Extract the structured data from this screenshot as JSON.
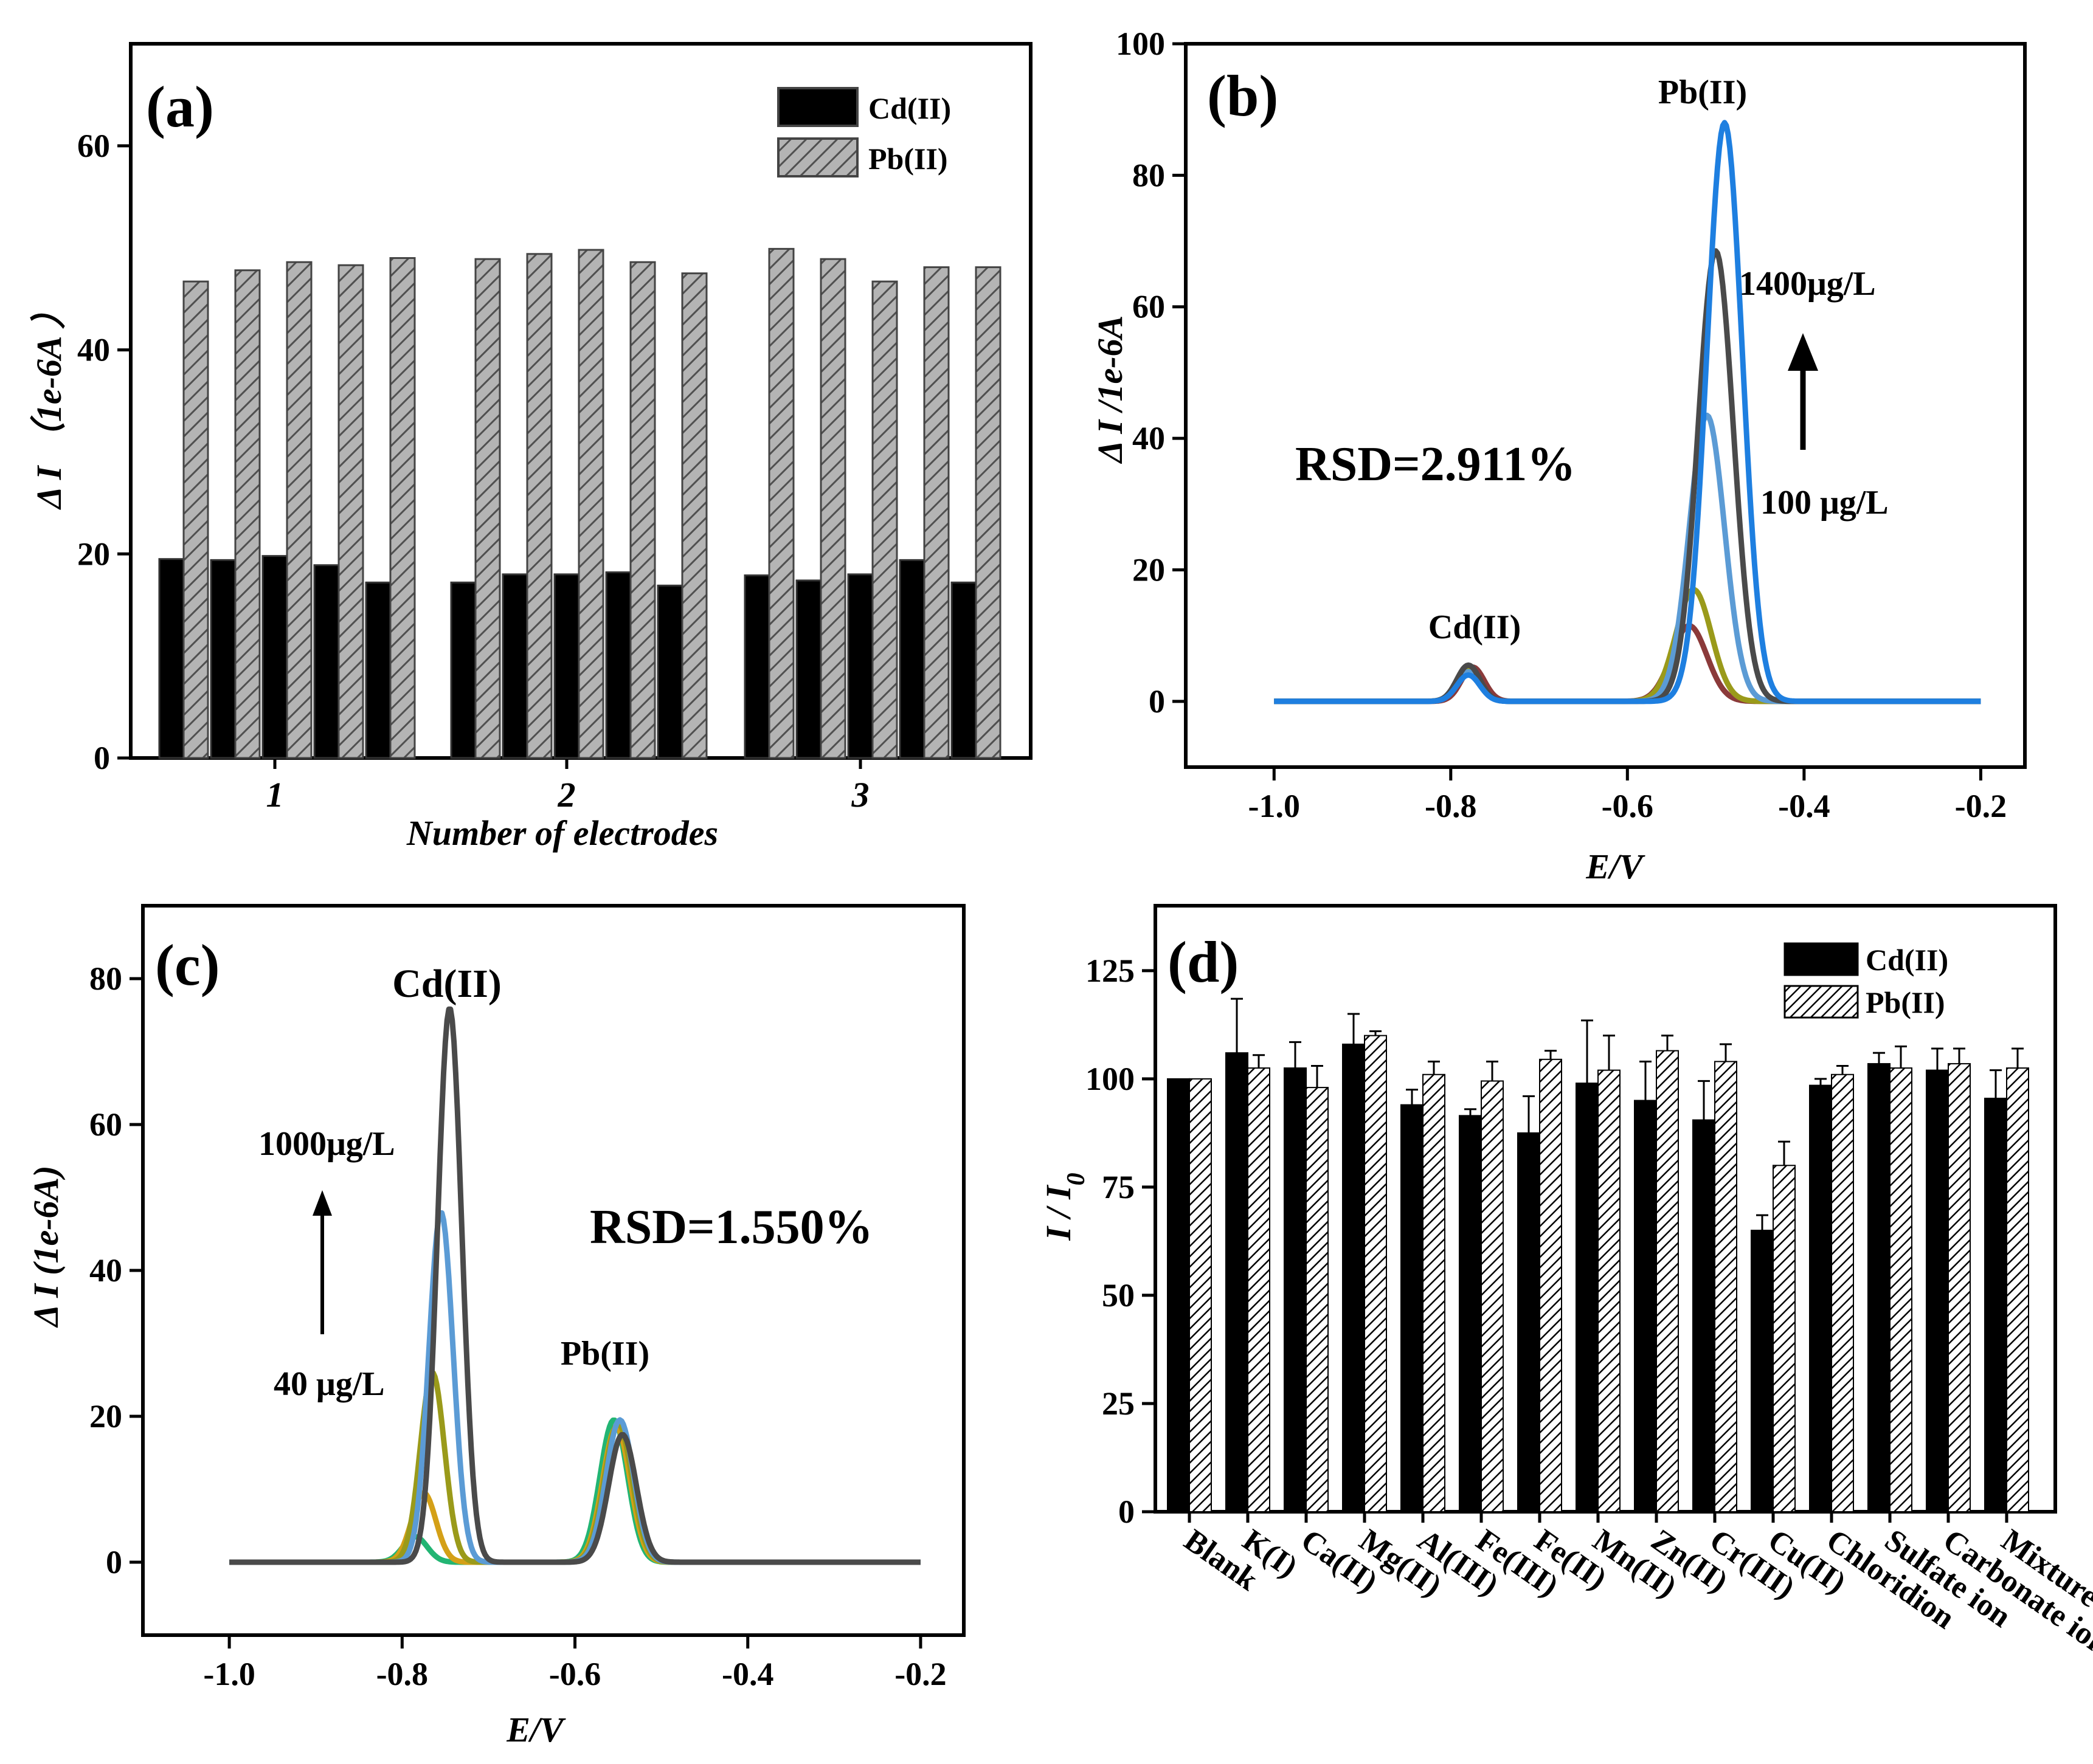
{
  "chart_data": [
    {
      "panel": "(a)",
      "type": "bar",
      "categories": [
        "1",
        "2",
        "3"
      ],
      "xlabel": "Number of electrodes",
      "ylabel": "Δ I （1e-6A ）",
      "ylim": [
        0,
        70
      ],
      "yticks": [
        "0",
        "20",
        "40",
        "60"
      ],
      "legend_position": "top-right",
      "series": [
        {
          "name": "Cd(II)",
          "color": "#000000",
          "pattern": "solid",
          "values": [
            [
              19.5,
              19.4,
              19.8,
              18.9,
              17.2
            ],
            [
              17.2,
              18.0,
              18.0,
              18.2,
              16.9
            ],
            [
              17.9,
              17.4,
              18.0,
              19.4,
              17.2
            ]
          ]
        },
        {
          "name": "Pb(II)",
          "color": "#a6a6a6",
          "pattern": "hatched",
          "values": [
            [
              46.7,
              47.8,
              48.6,
              48.3,
              49.0
            ],
            [
              48.9,
              49.4,
              49.8,
              48.6,
              47.5
            ],
            [
              49.9,
              48.9,
              46.7,
              48.1,
              48.1
            ]
          ]
        }
      ]
    },
    {
      "panel": "(b)",
      "type": "line",
      "xlabel": "E/V",
      "ylabel": "Δ I /1e-6A",
      "xlim": [
        -1.1,
        -0.15
      ],
      "ylim": [
        -10,
        100
      ],
      "xticks": [
        "-1.0",
        "-0.8",
        "-0.6",
        "-0.4",
        "-0.2"
      ],
      "yticks": [
        "0",
        "20",
        "40",
        "60",
        "80",
        "100"
      ],
      "annotations": {
        "peak1": "Cd(II)",
        "peak2": "Pb(II)",
        "rsd": "RSD=2.911%",
        "conc_high": "1400μg/L",
        "conc_low": "100 μg/L"
      },
      "series": [
        {
          "color": "#8b3a3a",
          "cd_peak": 5.2,
          "cd_pos": -0.775,
          "pb_peak": 11.5,
          "pb_pos": -0.53
        },
        {
          "color": "#9a9a1a",
          "cd_peak": 5.0,
          "cd_pos": -0.78,
          "pb_peak": 17.0,
          "pb_pos": -0.525
        },
        {
          "color": "#5b9bd5",
          "cd_peak": 4.5,
          "cd_pos": -0.78,
          "pb_peak": 43.5,
          "pb_pos": -0.51
        },
        {
          "color": "#4a4a4a",
          "cd_peak": 5.5,
          "cd_pos": -0.78,
          "pb_peak": 68.5,
          "pb_pos": -0.5
        },
        {
          "color": "#1e7fe0",
          "cd_peak": 4.0,
          "cd_pos": -0.78,
          "pb_peak": 88.0,
          "pb_pos": -0.49
        }
      ]
    },
    {
      "panel": "(c)",
      "type": "line",
      "xlabel": "E/V",
      "ylabel": "Δ I (1e-6A)",
      "xlim": [
        -1.1,
        -0.15
      ],
      "ylim": [
        -10,
        90
      ],
      "xticks": [
        "-1.0",
        "-0.8",
        "-0.6",
        "-0.4",
        "-0.2"
      ],
      "yticks": [
        "0",
        "20",
        "40",
        "60",
        "80"
      ],
      "annotations": {
        "peak1": "Cd(II)",
        "peak2": "Pb(II)",
        "rsd": "RSD=1.550%",
        "conc_high": "1000μg/L",
        "conc_low": "40 μg/L"
      },
      "series": [
        {
          "color": "#22b573",
          "cd_peak": 3.5,
          "cd_pos": -0.785,
          "pb_peak": 19.5,
          "pb_pos": -0.555
        },
        {
          "color": "#d4a017",
          "cd_peak": 9.5,
          "cd_pos": -0.775,
          "pb_peak": 18.5,
          "pb_pos": -0.552
        },
        {
          "color": "#9a9a1a",
          "cd_peak": 26.0,
          "cd_pos": -0.765,
          "pb_peak": 19.0,
          "pb_pos": -0.55
        },
        {
          "color": "#5b9bd5",
          "cd_peak": 48.0,
          "cd_pos": -0.755,
          "pb_peak": 19.5,
          "pb_pos": -0.548
        },
        {
          "color": "#4a4a4a",
          "cd_peak": 76.0,
          "cd_pos": -0.745,
          "pb_peak": 17.5,
          "pb_pos": -0.545
        }
      ]
    },
    {
      "panel": "(d)",
      "type": "bar",
      "xlabel": "",
      "ylabel": "I / I0",
      "ylim": [
        0,
        140
      ],
      "yticks": [
        "0",
        "25",
        "50",
        "75",
        "100",
        "125"
      ],
      "legend_position": "top-right",
      "categories": [
        "Blank",
        "K(I)",
        "Ca(II)",
        "Mg(II)",
        "Al(III)",
        "Fe(III)",
        "Fe(II)",
        "Mn(II)",
        "Zn(II)",
        "Cr(III)",
        "Cu(II)",
        "Chloridion",
        "Sulfate ion",
        "Carbonate ion",
        "Mixture"
      ],
      "series": [
        {
          "name": "Cd(II)",
          "color": "#000000",
          "pattern": "solid",
          "values": [
            100,
            106,
            102.5,
            108,
            94,
            91.5,
            87.5,
            99,
            95,
            90.5,
            65,
            98.5,
            103.5,
            102,
            95.5
          ],
          "errors": [
            0,
            12.5,
            6,
            7,
            3.5,
            1.5,
            8.5,
            14.5,
            9,
            9,
            3.5,
            1.5,
            2.5,
            5,
            6.5
          ]
        },
        {
          "name": "Pb(II)",
          "color": "#ffffff",
          "pattern": "hatched",
          "values": [
            100,
            102.5,
            98,
            110,
            101,
            99.5,
            104.5,
            102,
            106.5,
            104,
            80,
            101,
            102.5,
            103.5,
            102.5
          ],
          "errors": [
            0,
            3,
            5,
            1,
            3,
            4.5,
            2,
            8,
            3.5,
            4,
            5.5,
            2,
            5,
            3.5,
            4.5
          ]
        }
      ]
    }
  ]
}
